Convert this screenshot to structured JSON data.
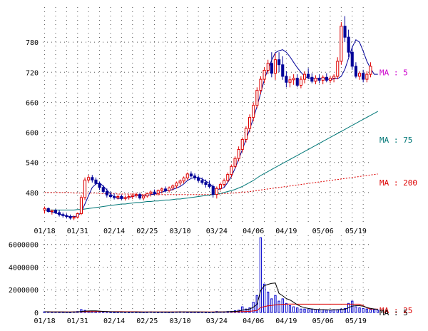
{
  "chart_data": [
    {
      "type": "candlestick",
      "panel": "price",
      "ylim": [
        420,
        850
      ],
      "y_ticks": [
        480,
        540,
        600,
        660,
        720,
        780
      ],
      "x_tick_labels": [
        "01/18",
        "01/31",
        "02/14",
        "02/25",
        "03/10",
        "03/24",
        "04/06",
        "04/19",
        "05/06",
        "05/19"
      ],
      "x_tick_index": [
        0,
        9,
        19,
        28,
        37,
        47,
        57,
        66,
        76,
        85
      ],
      "grid": true,
      "colors": {
        "up": "#dd0000",
        "down": "#000099",
        "ma5": "#000099",
        "ma75": "#007777",
        "ma200": "#dd0000"
      },
      "candles": [
        [
          445,
          452,
          438,
          448
        ],
        [
          448,
          450,
          440,
          442
        ],
        [
          442,
          446,
          436,
          444
        ],
        [
          444,
          447,
          437,
          440
        ],
        [
          440,
          445,
          432,
          436
        ],
        [
          436,
          440,
          430,
          434
        ],
        [
          434,
          438,
          428,
          432
        ],
        [
          432,
          436,
          426,
          429
        ],
        [
          429,
          434,
          425,
          431
        ],
        [
          431,
          440,
          428,
          438
        ],
        [
          438,
          475,
          435,
          470
        ],
        [
          470,
          510,
          465,
          505
        ],
        [
          505,
          515,
          500,
          510
        ],
        [
          510,
          515,
          500,
          505
        ],
        [
          505,
          510,
          495,
          498
        ],
        [
          498,
          502,
          485,
          490
        ],
        [
          490,
          495,
          478,
          482
        ],
        [
          482,
          488,
          470,
          475
        ],
        [
          475,
          482,
          468,
          472
        ],
        [
          472,
          478,
          466,
          470
        ],
        [
          470,
          476,
          466,
          472
        ],
        [
          472,
          476,
          465,
          468
        ],
        [
          468,
          474,
          464,
          470
        ],
        [
          470,
          476,
          466,
          472
        ],
        [
          472,
          478,
          467,
          474
        ],
        [
          474,
          480,
          470,
          476
        ],
        [
          476,
          480,
          466,
          469
        ],
        [
          469,
          476,
          465,
          473
        ],
        [
          473,
          480,
          470,
          478
        ],
        [
          478,
          484,
          472,
          481
        ],
        [
          481,
          486,
          475,
          478
        ],
        [
          478,
          486,
          474,
          484
        ],
        [
          484,
          490,
          478,
          487
        ],
        [
          487,
          492,
          480,
          484
        ],
        [
          484,
          492,
          480,
          489
        ],
        [
          489,
          496,
          484,
          493
        ],
        [
          493,
          502,
          488,
          499
        ],
        [
          499,
          506,
          494,
          503
        ],
        [
          503,
          512,
          498,
          509
        ],
        [
          509,
          520,
          505,
          517
        ],
        [
          517,
          522,
          510,
          513
        ],
        [
          513,
          518,
          505,
          509
        ],
        [
          509,
          514,
          500,
          504
        ],
        [
          504,
          510,
          496,
          500
        ],
        [
          500,
          506,
          490,
          496
        ],
        [
          496,
          504,
          488,
          492
        ],
        [
          492,
          496,
          470,
          476
        ],
        [
          476,
          492,
          468,
          488
        ],
        [
          488,
          500,
          484,
          496
        ],
        [
          496,
          508,
          492,
          504
        ],
        [
          504,
          520,
          500,
          516
        ],
        [
          516,
          536,
          510,
          532
        ],
        [
          532,
          552,
          528,
          548
        ],
        [
          548,
          572,
          542,
          566
        ],
        [
          566,
          590,
          560,
          586
        ],
        [
          586,
          612,
          580,
          608
        ],
        [
          608,
          636,
          600,
          630
        ],
        [
          630,
          660,
          622,
          654
        ],
        [
          654,
          690,
          648,
          684
        ],
        [
          684,
          712,
          676,
          706
        ],
        [
          706,
          730,
          698,
          724
        ],
        [
          724,
          745,
          716,
          738
        ],
        [
          738,
          760,
          710,
          718
        ],
        [
          718,
          758,
          705,
          745
        ],
        [
          745,
          760,
          720,
          735
        ],
        [
          735,
          752,
          705,
          712
        ],
        [
          712,
          722,
          690,
          700
        ],
        [
          700,
          712,
          690,
          705
        ],
        [
          705,
          716,
          695,
          708
        ],
        [
          708,
          716,
          690,
          694
        ],
        [
          694,
          712,
          688,
          706
        ],
        [
          706,
          722,
          698,
          716
        ],
        [
          716,
          728,
          706,
          710
        ],
        [
          710,
          718,
          698,
          702
        ],
        [
          702,
          714,
          696,
          708
        ],
        [
          708,
          716,
          698,
          704
        ],
        [
          704,
          714,
          696,
          710
        ],
        [
          710,
          718,
          700,
          704
        ],
        [
          704,
          712,
          698,
          708
        ],
        [
          708,
          716,
          700,
          712
        ],
        [
          712,
          750,
          706,
          742
        ],
        [
          742,
          820,
          735,
          812
        ],
        [
          812,
          832,
          780,
          790
        ],
        [
          790,
          805,
          750,
          760
        ],
        [
          760,
          770,
          725,
          732
        ],
        [
          732,
          740,
          708,
          712
        ],
        [
          712,
          722,
          705,
          718
        ],
        [
          718,
          725,
          700,
          706
        ],
        [
          706,
          722,
          700,
          716
        ],
        [
          716,
          740,
          710,
          732
        ]
      ],
      "ma5": [
        446,
        443,
        441,
        439,
        437,
        435,
        433,
        432,
        432,
        433,
        441,
        457,
        474,
        490,
        497,
        499,
        493,
        485,
        477,
        471,
        468,
        469,
        469,
        470,
        472,
        474,
        474,
        473,
        474,
        476,
        477,
        479,
        481,
        483,
        484,
        486,
        489,
        492,
        497,
        504,
        508,
        510,
        510,
        507,
        503,
        498,
        491,
        486,
        487,
        490,
        500,
        512,
        528,
        546,
        566,
        586,
        606,
        628,
        652,
        678,
        705,
        727,
        744,
        759,
        763,
        765,
        760,
        751,
        740,
        729,
        720,
        712,
        708,
        706,
        708,
        708,
        707,
        707,
        705,
        707,
        707,
        712,
        726,
        748,
        770,
        785,
        780,
        762,
        742,
        728,
        716,
        716
      ],
      "ma75": [
        445,
        445,
        445,
        445,
        445,
        445,
        445,
        445,
        445,
        446,
        446,
        447,
        448,
        449,
        450,
        451,
        452,
        453,
        454,
        455,
        456,
        457,
        457,
        458,
        459,
        460,
        460,
        461,
        462,
        462,
        463,
        463,
        464,
        465,
        465,
        466,
        467,
        467,
        468,
        469,
        470,
        471,
        472,
        473,
        474,
        475,
        476,
        477,
        478,
        480,
        482,
        484,
        486,
        489,
        492,
        496,
        500,
        504,
        509,
        514,
        518,
        522,
        526,
        530,
        534,
        538,
        542,
        546,
        550,
        554,
        558,
        562,
        566,
        570,
        574,
        578,
        582,
        586,
        590,
        594,
        598,
        602,
        606,
        610,
        614,
        618,
        622,
        626,
        630,
        634,
        638,
        642
      ],
      "ma200": [
        480,
        480,
        480,
        480,
        480,
        480,
        480,
        480,
        479,
        479,
        479,
        479,
        479,
        479,
        479,
        478,
        478,
        478,
        478,
        478,
        477,
        477,
        477,
        477,
        477,
        477,
        476,
        476,
        476,
        476,
        476,
        476,
        476,
        476,
        476,
        476,
        476,
        476,
        476,
        476,
        476,
        476,
        476,
        476,
        476,
        476,
        477,
        477,
        477,
        478,
        478,
        479,
        479,
        480,
        481,
        481,
        482,
        483,
        484,
        485,
        486,
        487,
        488,
        489,
        490,
        491,
        492,
        493,
        494,
        495,
        496,
        497,
        498,
        499,
        500,
        501,
        502,
        503,
        504,
        505,
        506,
        507,
        508,
        509,
        510,
        511,
        512,
        513,
        514,
        515,
        516,
        517
      ],
      "ma_labels": [
        {
          "text": "MA : 5",
          "color": "#cc00cc",
          "value": 720
        },
        {
          "text": "MA : 75",
          "color": "#007777",
          "value": 585
        },
        {
          "text": "MA : 200",
          "color": "#dd0000",
          "value": 500
        }
      ]
    },
    {
      "type": "bar",
      "panel": "volume",
      "ylim": [
        0,
        6800000
      ],
      "y_ticks": [
        "0",
        "2000000",
        "4000000",
        "6000000"
      ],
      "bar_color": "#0000cc",
      "x_tick_labels": [
        "01/18",
        "01/31",
        "02/14",
        "02/25",
        "03/10",
        "03/24",
        "04/06",
        "04/19",
        "05/06",
        "05/19"
      ],
      "x_tick_index": [
        0,
        9,
        19,
        28,
        37,
        47,
        57,
        66,
        76,
        85
      ],
      "values": [
        60000,
        50000,
        40000,
        45000,
        40000,
        35000,
        40000,
        30000,
        50000,
        80000,
        250000,
        180000,
        120000,
        90000,
        80000,
        70000,
        60000,
        50000,
        40000,
        30000,
        40000,
        50000,
        40000,
        30000,
        40000,
        35000,
        40000,
        30000,
        40000,
        50000,
        40000,
        30000,
        40000,
        35000,
        30000,
        40000,
        50000,
        60000,
        50000,
        40000,
        40000,
        35000,
        30000,
        40000,
        30000,
        30000,
        40000,
        80000,
        50000,
        60000,
        80000,
        100000,
        150000,
        200000,
        500000,
        300000,
        400000,
        900000,
        1500000,
        6600000,
        2500000,
        1800000,
        1200000,
        1500000,
        1000000,
        1200000,
        800000,
        600000,
        500000,
        400000,
        300000,
        300000,
        250000,
        300000,
        250000,
        200000,
        250000,
        200000,
        200000,
        250000,
        250000,
        300000,
        350000,
        800000,
        1000000,
        500000,
        400000,
        350000,
        300000,
        250000,
        250000,
        200000
      ],
      "ma25": [
        60000,
        55000,
        52000,
        50000,
        48000,
        46000,
        45000,
        44000,
        44000,
        46000,
        60000,
        70000,
        72000,
        75000,
        76000,
        76000,
        75000,
        74000,
        72000,
        70000,
        68000,
        67000,
        66000,
        65000,
        64000,
        60000,
        55000,
        52000,
        50000,
        48000,
        47000,
        46000,
        45000,
        44000,
        43000,
        42000,
        42000,
        42000,
        42000,
        42000,
        42000,
        41000,
        41000,
        41000,
        41000,
        41000,
        42000,
        43000,
        44000,
        45000,
        48000,
        50000,
        55000,
        60000,
        80000,
        90000,
        100000,
        130000,
        180000,
        430000,
        520000,
        580000,
        620000,
        670000,
        700000,
        720000,
        730000,
        740000,
        740000,
        730000,
        730000,
        730000,
        730000,
        730000,
        730000,
        730000,
        730000,
        730000,
        730000,
        730000,
        730000,
        730000,
        730000,
        730000,
        730000,
        730000,
        730000,
        600000,
        400000,
        300000,
        300000,
        300000
      ],
      "ma5": [
        60000,
        55000,
        50000,
        47000,
        45000,
        42000,
        38000,
        38000,
        41000,
        50000,
        90000,
        120000,
        134000,
        144000,
        144000,
        118000,
        94000,
        78000,
        66000,
        56000,
        48000,
        42000,
        40000,
        39000,
        40000,
        41000,
        38000,
        35000,
        37000,
        39000,
        40000,
        38000,
        38000,
        39000,
        37000,
        35000,
        39000,
        43000,
        46000,
        48000,
        48000,
        47000,
        42000,
        39000,
        35000,
        33000,
        34000,
        44000,
        47000,
        52000,
        64000,
        74000,
        94000,
        120000,
        200000,
        250000,
        310000,
        460000,
        720000,
        1940000,
        2360000,
        2480000,
        2560000,
        2600000,
        1680000,
        1480000,
        1220000,
        1100000,
        900000,
        680000,
        520000,
        420000,
        350000,
        310000,
        280000,
        260000,
        250000,
        230000,
        220000,
        230000,
        240000,
        260000,
        280000,
        420000,
        560000,
        600000,
        600000,
        550000,
        440000,
        360000,
        310000,
        270000
      ],
      "ma_labels": [
        {
          "text": "MA : 25",
          "color": "#dd0000"
        },
        {
          "text": "MA : 5",
          "color": "#000000"
        }
      ]
    }
  ]
}
